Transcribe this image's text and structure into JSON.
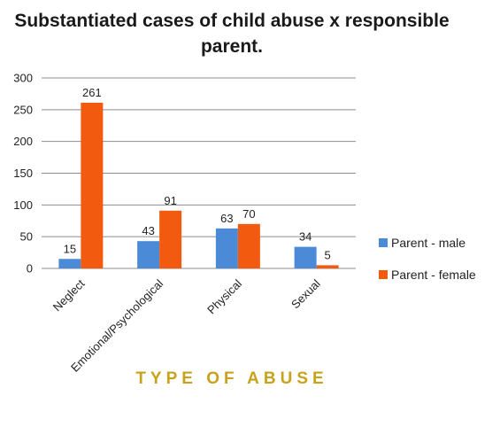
{
  "chart_data": {
    "type": "bar",
    "title": "Substantiated cases of child abuse x responsible parent.",
    "title_lines": [
      "Substantiated cases of child abuse x responsible",
      "parent."
    ],
    "xlabel": "TYPE OF ABUSE",
    "ylabel": "",
    "ylim": [
      0,
      300
    ],
    "yticks": [
      0,
      50,
      100,
      150,
      200,
      250,
      300
    ],
    "ytick_labels": [
      "0",
      "50",
      "100",
      "150",
      "200",
      "250",
      "300"
    ],
    "grid": "horizontal",
    "legend_position": "right",
    "categories": [
      "Neglect",
      "Emotional/Psychological",
      "Physical",
      "Sexual"
    ],
    "series": [
      {
        "name": "Parent - male",
        "values": [
          15,
          43,
          63,
          34
        ],
        "labels": [
          "15",
          "43",
          "63",
          "34"
        ]
      },
      {
        "name": "Parent - female",
        "values": [
          261,
          91,
          70,
          5
        ],
        "labels": [
          "261",
          "91",
          "70",
          "5"
        ]
      }
    ],
    "colors": {
      "Parent - male": "#4a8ad6",
      "Parent - female": "#f25a10",
      "gridline": "#8c8c8c",
      "xlabel": "#c9a21c"
    }
  }
}
